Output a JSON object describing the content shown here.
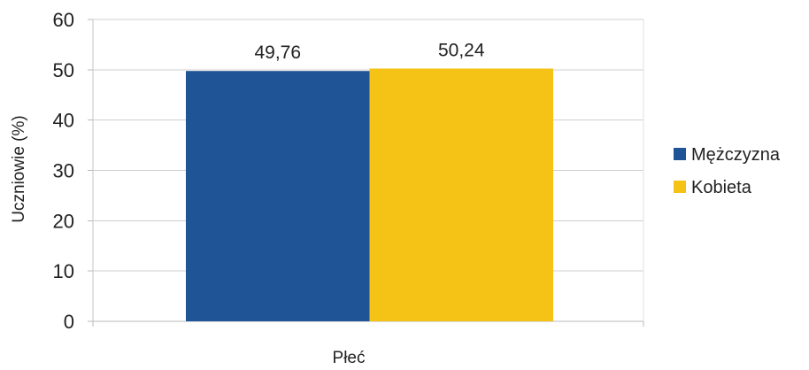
{
  "chart_data": {
    "type": "bar",
    "title": "",
    "xlabel": "Płeć",
    "ylabel": "Uczniowie (%)",
    "ylim": [
      0,
      60
    ],
    "yticks": [
      0,
      10,
      20,
      30,
      40,
      50,
      60
    ],
    "grid": true,
    "legend_position": "right",
    "categories": [
      ""
    ],
    "series": [
      {
        "name": "Mężczyzna",
        "values": [
          49.76
        ],
        "label": "49,76",
        "color": "#1f5597"
      },
      {
        "name": "Kobieta",
        "values": [
          50.24
        ],
        "label": "50,24",
        "color": "#f5c315"
      }
    ]
  }
}
